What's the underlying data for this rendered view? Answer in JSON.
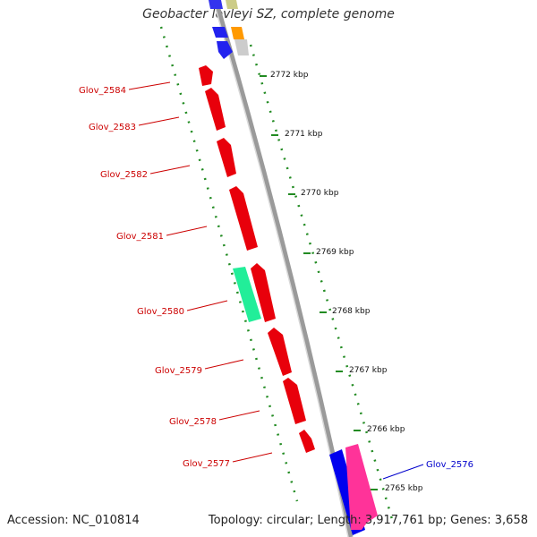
{
  "title": "Geobacter lovleyi SZ, complete genome",
  "footer": {
    "accession": "Accession: NC_010814",
    "summary": "Topology: circular; Length: 3,917,761 bp; Genes: 3,658"
  },
  "colors": {
    "forward_gene": "#e8000b",
    "reverse_gene": "#e8000b",
    "highlight_gene": "#22ee99",
    "pink_gene": "#ff3399",
    "blue_gene": "#0000ee",
    "backbone": "#888888",
    "tick": "#228b22",
    "label_red": "#cc0000",
    "label_blue": "#0000cc"
  },
  "ticks": [
    "2772 kbp",
    "2771 kbp",
    "2770 kbp",
    "2769 kbp",
    "2768 kbp",
    "2767 kbp",
    "2766 kbp",
    "2765 kbp"
  ],
  "gene_labels": [
    {
      "text": "Glov_2584",
      "color": "red"
    },
    {
      "text": "Glov_2583",
      "color": "red"
    },
    {
      "text": "Glov_2582",
      "color": "red"
    },
    {
      "text": "Glov_2581",
      "color": "red"
    },
    {
      "text": "Glov_2580",
      "color": "red"
    },
    {
      "text": "Glov_2579",
      "color": "red"
    },
    {
      "text": "Glov_2578",
      "color": "red"
    },
    {
      "text": "Glov_2577",
      "color": "red"
    },
    {
      "text": "Glov_2576",
      "color": "blue"
    }
  ]
}
